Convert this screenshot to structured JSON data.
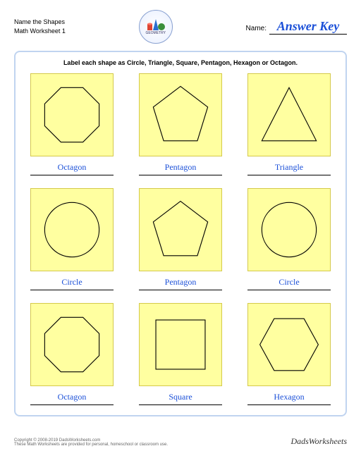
{
  "header": {
    "title_line1": "Name the Shapes",
    "title_line2": "Math Worksheet 1",
    "logo_label": "GEOMETRY",
    "name_label": "Name:",
    "name_value": "Answer Key"
  },
  "instructions": "Label each shape as Circle, Triangle, Square, Pentagon, Hexagon or Octagon.",
  "style": {
    "tile_bg": "#ffffa0",
    "tile_border": "#d4c94a",
    "frame_border": "#c0d4f0",
    "answer_color": "#1a4fd8",
    "shape_stroke": "#000000",
    "shape_stroke_width": 1.2,
    "grid_cols": 3
  },
  "cells": [
    {
      "shape": "octagon",
      "answer": "Octagon"
    },
    {
      "shape": "pentagon",
      "answer": "Pentagon"
    },
    {
      "shape": "triangle",
      "answer": "Triangle"
    },
    {
      "shape": "circle",
      "answer": "Circle"
    },
    {
      "shape": "pentagon",
      "answer": "Pentagon"
    },
    {
      "shape": "circle",
      "answer": "Circle"
    },
    {
      "shape": "octagon",
      "answer": "Octagon"
    },
    {
      "shape": "square",
      "answer": "Square"
    },
    {
      "shape": "hexagon",
      "answer": "Hexagon"
    }
  ],
  "footer": {
    "copyright": "Copyright © 2008-2019 DadsWorksheets.com",
    "note": "These Math Worksheets are provided for personal, homeschool or classroom use.",
    "brand": "DadsWorksheets"
  }
}
